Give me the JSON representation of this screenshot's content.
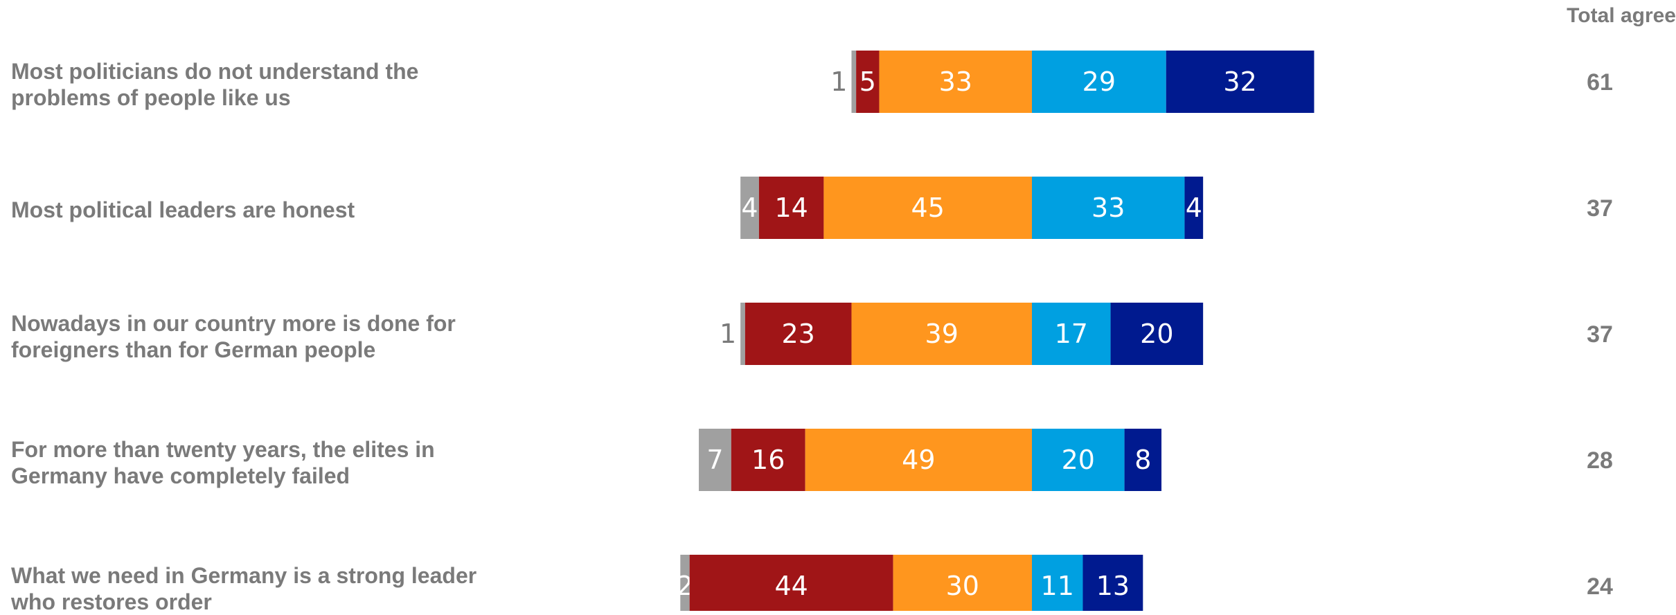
{
  "chart_data": {
    "type": "bar",
    "orientation": "horizontal-diverging-stacked",
    "total_header": "Total agree",
    "categories": [
      "Most politicians do not understand the problems of people like us",
      "Most political leaders are honest",
      "Nowadays in our country more is done for foreigners than for German people",
      "For more than twenty years, the elites in Germany have completely failed",
      "What we need in Germany is a strong leader who restores order"
    ],
    "label_lines": [
      [
        "Most politicians do not understand the",
        "problems of people like us"
      ],
      [
        "Most political leaders are honest"
      ],
      [
        "Nowadays in our country more is done for",
        "foreigners than for German people"
      ],
      [
        "For more than twenty years, the elites in",
        "Germany have completely failed"
      ],
      [
        "What we need in Germany is a strong leader",
        "who restores order"
      ]
    ],
    "series": [
      {
        "color": "#a0a0a0",
        "values": [
          1,
          4,
          1,
          7,
          2
        ]
      },
      {
        "color": "#a01517",
        "values": [
          5,
          14,
          23,
          16,
          44
        ]
      },
      {
        "color": "#ff961e",
        "values": [
          33,
          45,
          39,
          49,
          30
        ]
      },
      {
        "color": "#00a0e1",
        "values": [
          29,
          33,
          17,
          20,
          11
        ]
      },
      {
        "color": "#001a8f",
        "values": [
          32,
          4,
          20,
          8,
          13
        ]
      }
    ],
    "total_agree": [
      61,
      37,
      37,
      28,
      24
    ]
  }
}
